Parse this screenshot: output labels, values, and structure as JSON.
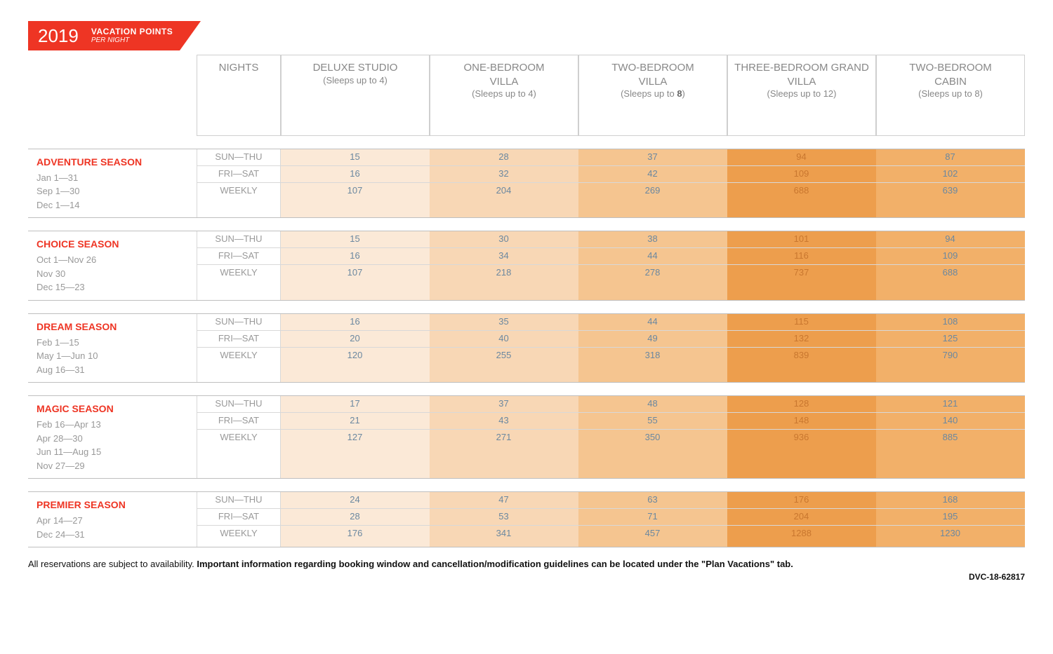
{
  "banner": {
    "year": "2019",
    "title_line1": "VACATION POINTS",
    "title_line2": "PER NIGHT"
  },
  "colors": {
    "accent": "#ee3524",
    "header_text": "#888888",
    "cell_text": "#6b88a0",
    "shades": [
      "#fbe9d7",
      "#f8d7b5",
      "#f5c590",
      "#ed9e4d",
      "#f2b069"
    ]
  },
  "headers": {
    "nights": "NIGHTS",
    "rooms": [
      {
        "name": "DELUXE STUDIO",
        "sleeps_prefix": "(Sleeps up to ",
        "sleeps_num": "4",
        "sleeps_suffix": ")",
        "sleeps_bold": false
      },
      {
        "name": "ONE-BEDROOM VILLA",
        "sleeps_prefix": "(Sleeps up to ",
        "sleeps_num": "4",
        "sleeps_suffix": ")",
        "sleeps_bold": false
      },
      {
        "name": "TWO-BEDROOM VILLA",
        "sleeps_prefix": "(Sleeps up to ",
        "sleeps_num": "8",
        "sleeps_suffix": ")",
        "sleeps_bold": true
      },
      {
        "name": "THREE-BEDROOM GRAND VILLA",
        "sleeps_prefix": "(Sleeps up to ",
        "sleeps_num": "12",
        "sleeps_suffix": ")",
        "sleeps_bold": false
      },
      {
        "name": "TWO-BEDROOM CABIN",
        "sleeps_prefix": "(Sleeps up to ",
        "sleeps_num": "8",
        "sleeps_suffix": ")",
        "sleeps_bold": false
      }
    ]
  },
  "night_labels": [
    "SUN—THU",
    "FRI—SAT",
    "WEEKLY"
  ],
  "seasons": [
    {
      "name": "ADVENTURE SEASON",
      "dates": [
        "Jan 1—31",
        "Sep 1—30",
        "Dec 1—14"
      ],
      "rows": [
        [
          15,
          28,
          37,
          94,
          87
        ],
        [
          16,
          32,
          42,
          109,
          102
        ],
        [
          107,
          204,
          269,
          688,
          639
        ]
      ]
    },
    {
      "name": "CHOICE SEASON",
      "dates": [
        "Oct 1—Nov 26",
        "Nov 30",
        "Dec 15—23"
      ],
      "rows": [
        [
          15,
          30,
          38,
          101,
          94
        ],
        [
          16,
          34,
          44,
          116,
          109
        ],
        [
          107,
          218,
          278,
          737,
          688
        ]
      ]
    },
    {
      "name": "DREAM SEASON",
      "dates": [
        "Feb 1—15",
        "May 1—Jun 10",
        "Aug 16—31"
      ],
      "rows": [
        [
          16,
          35,
          44,
          115,
          108
        ],
        [
          20,
          40,
          49,
          132,
          125
        ],
        [
          120,
          255,
          318,
          839,
          790
        ]
      ]
    },
    {
      "name": "MAGIC SEASON",
      "dates": [
        "Feb 16—Apr 13",
        "Apr 28—30",
        "Jun 11—Aug 15",
        "Nov 27—29"
      ],
      "rows": [
        [
          17,
          37,
          48,
          128,
          121
        ],
        [
          21,
          43,
          55,
          148,
          140
        ],
        [
          127,
          271,
          350,
          936,
          885
        ]
      ]
    },
    {
      "name": "PREMIER SEASON",
      "dates": [
        "Apr 14—27",
        "Dec 24—31"
      ],
      "rows": [
        [
          24,
          47,
          63,
          176,
          168
        ],
        [
          28,
          53,
          71,
          204,
          195
        ],
        [
          176,
          341,
          457,
          1288,
          1230
        ]
      ]
    }
  ],
  "footnote": {
    "prefix": "All reservations are subject to availability. ",
    "bold": "Important information regarding booking window and cancellation/modification guidelines can be located under the \"Plan Vacations\" tab."
  },
  "doc_id": "DVC-18-62817"
}
